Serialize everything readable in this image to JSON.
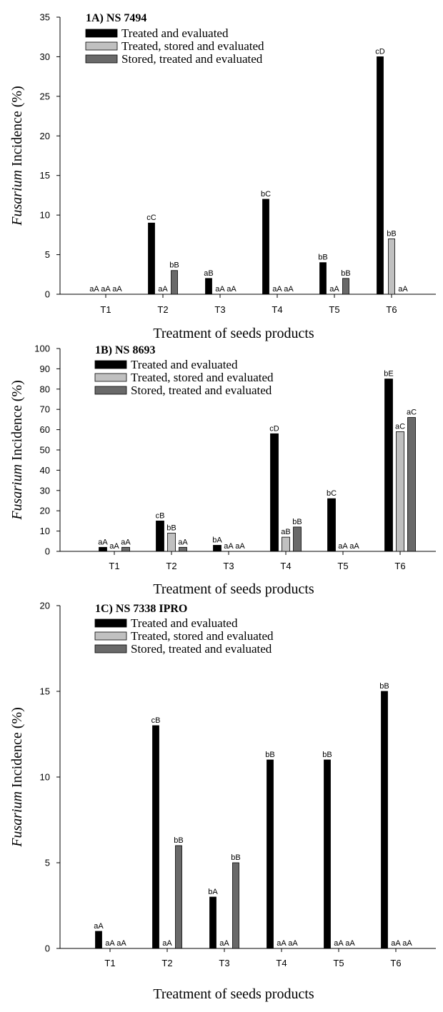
{
  "colors": {
    "series": [
      "#000000",
      "#c0c0c0",
      "#696969"
    ],
    "axis": "#000000"
  },
  "chart_data": [
    {
      "type": "bar",
      "title": "1A) NS 7494",
      "xlabel": "Treatment of seeds products",
      "ylabel_italic": "Fusarium",
      "ylabel_rest": " Incidence (%)",
      "ylim": [
        0,
        35
      ],
      "yticks": [
        0,
        5,
        10,
        15,
        20,
        25,
        30,
        35
      ],
      "categories": [
        "T1",
        "T2",
        "T3",
        "T4",
        "T5",
        "T6"
      ],
      "series": [
        {
          "name": "Treated and evaluated",
          "values": [
            0,
            9,
            2,
            12,
            4,
            30
          ],
          "labels": [
            "aA",
            "cC",
            "aB",
            "bC",
            "bB",
            "cD"
          ]
        },
        {
          "name": "Treated, stored and evaluated",
          "values": [
            0,
            0,
            0,
            0,
            0,
            7
          ],
          "labels": [
            "aA",
            "aA",
            "aA",
            "aA",
            "aA",
            "bB"
          ]
        },
        {
          "name": "Stored, treated and evaluated",
          "values": [
            0,
            3,
            0,
            0,
            2,
            0
          ],
          "labels": [
            "aA",
            "bB",
            "aA",
            "aA",
            "bB",
            "aA"
          ]
        }
      ]
    },
    {
      "type": "bar",
      "title": "1B) NS 8693",
      "xlabel": "Treatment of seeds products",
      "ylabel_italic": "Fusarium",
      "ylabel_rest": " Incidence (%)",
      "ylim": [
        0,
        100
      ],
      "yticks": [
        0,
        10,
        20,
        30,
        40,
        50,
        60,
        70,
        80,
        90,
        100
      ],
      "categories": [
        "T1",
        "T2",
        "T3",
        "T4",
        "T5",
        "T6"
      ],
      "series": [
        {
          "name": "Treated and evaluated",
          "values": [
            2,
            15,
            3,
            58,
            26,
            85
          ],
          "labels": [
            "aA",
            "cB",
            "bA",
            "cD",
            "bC",
            "bE"
          ]
        },
        {
          "name": "Treated, stored and evaluated",
          "values": [
            0,
            9,
            0,
            7,
            0,
            59
          ],
          "labels": [
            "aA",
            "bB",
            "aA",
            "aB",
            "aA",
            "aC"
          ]
        },
        {
          "name": "Stored, treated and evaluated",
          "values": [
            2,
            2,
            0,
            12,
            0,
            66
          ],
          "labels": [
            "aA",
            "aA",
            "aA",
            "bB",
            "aA",
            "aC"
          ]
        }
      ]
    },
    {
      "type": "bar",
      "title": "1C) NS 7338 IPRO",
      "xlabel": "Treatment of seeds products",
      "ylabel_italic": "Fusarium",
      "ylabel_rest": " Incidence (%)",
      "ylim": [
        0,
        20
      ],
      "yticks": [
        0,
        5,
        10,
        15,
        20
      ],
      "categories": [
        "T1",
        "T2",
        "T3",
        "T4",
        "T5",
        "T6"
      ],
      "series": [
        {
          "name": "Treated and evaluated",
          "values": [
            1,
            13,
            3,
            11,
            11,
            15
          ],
          "labels": [
            "aA",
            "cB",
            "bA",
            "bB",
            "bB",
            "bB"
          ]
        },
        {
          "name": "Treated, stored and evaluated",
          "values": [
            0,
            0,
            0,
            0,
            0,
            0
          ],
          "labels": [
            "aA",
            "aA",
            "aA",
            "aA",
            "aA",
            "aA"
          ]
        },
        {
          "name": "Stored, treated and evaluated",
          "values": [
            0,
            6,
            5,
            0,
            0,
            0
          ],
          "labels": [
            "aA",
            "bB",
            "bB",
            "aA",
            "aA",
            "aA"
          ]
        }
      ]
    }
  ]
}
